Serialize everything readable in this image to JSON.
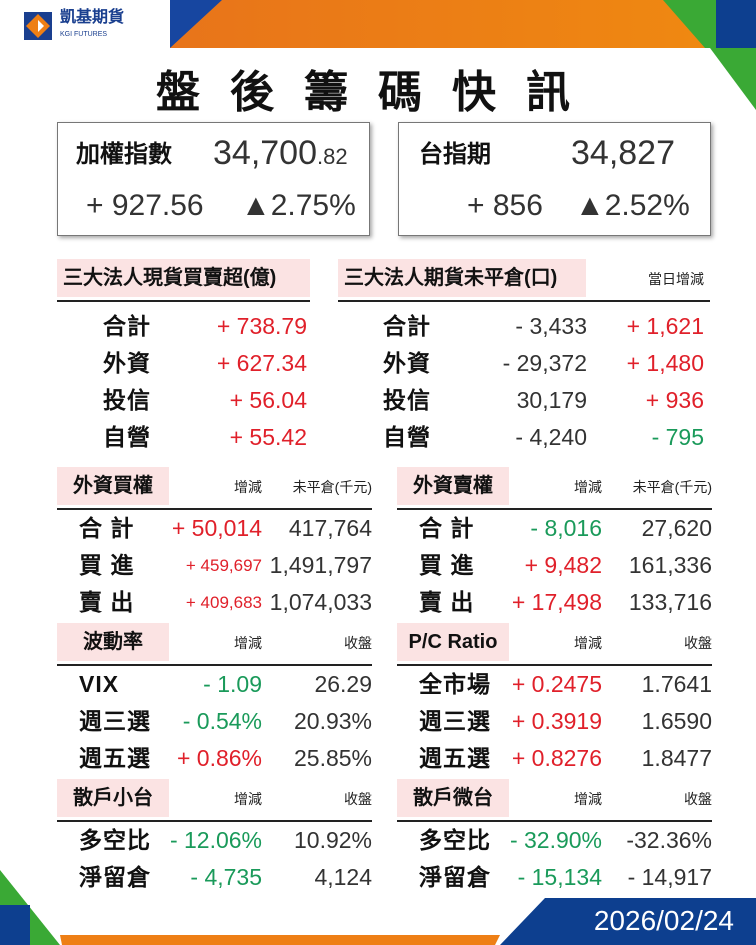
{
  "brand": {
    "name": "凱基期貨",
    "sub": "KGI FUTURES"
  },
  "title": "盤後籌碼快訊",
  "index": {
    "name": "加權指數",
    "price_int": "34,700",
    "price_dec": ".82",
    "change": "+ 927.56",
    "pct": "▲2.75%"
  },
  "futures": {
    "name": "台指期",
    "price": "34,827",
    "change": "+ 856",
    "pct": "▲2.52%"
  },
  "colors": {
    "up": "#e0202a",
    "down": "#1a9a5a",
    "header_bg": "#fbe3e3",
    "orange": "#ee7f15",
    "blue": "#0d3f8f",
    "green": "#3aa935"
  },
  "spot": {
    "header": "三大法人現貨買賣超(億)",
    "rows": [
      {
        "label": "合計",
        "value": "+ 738.79",
        "dir": "up"
      },
      {
        "label": "外資",
        "value": "+ 627.34",
        "dir": "up"
      },
      {
        "label": "投信",
        "value": "+ 56.04",
        "dir": "up"
      },
      {
        "label": "自營",
        "value": "+ 55.42",
        "dir": "up"
      }
    ]
  },
  "oi": {
    "header": "三大法人期貨未平倉(口)",
    "change_header": "當日增減",
    "rows": [
      {
        "label": "合計",
        "value": "- 3,433",
        "change": "+ 1,621",
        "dir": "up"
      },
      {
        "label": "外資",
        "value": "- 29,372",
        "change": "+ 1,480",
        "dir": "up"
      },
      {
        "label": "投信",
        "value": "30,179",
        "change": "+ 936",
        "dir": "up"
      },
      {
        "label": "自營",
        "value": "- 4,240",
        "change": "- 795",
        "dir": "down"
      }
    ]
  },
  "sections": [
    {
      "key": "call",
      "header": "外資買權",
      "h1": "增減",
      "h2": "未平倉(千元)",
      "rows": [
        {
          "label": "合 計",
          "change": "+ 50,014",
          "dir": "up",
          "value": "417,764"
        },
        {
          "label": "買 進",
          "change": "+ 459,697",
          "dir": "up",
          "value": "1,491,797",
          "small": true
        },
        {
          "label": "賣 出",
          "change": "+ 409,683",
          "dir": "up",
          "value": "1,074,033",
          "small": true
        }
      ]
    },
    {
      "key": "put",
      "header": "外資賣權",
      "h1": "增減",
      "h2": "未平倉(千元)",
      "rows": [
        {
          "label": "合 計",
          "change": "- 8,016",
          "dir": "down",
          "value": "27,620"
        },
        {
          "label": "買 進",
          "change": "+ 9,482",
          "dir": "up",
          "value": "161,336"
        },
        {
          "label": "賣 出",
          "change": "+ 17,498",
          "dir": "up",
          "value": "133,716"
        }
      ]
    },
    {
      "key": "vol",
      "header": "波動率",
      "h1": "增減",
      "h2": "收盤",
      "rows": [
        {
          "label": "VIX",
          "change": "- 1.09",
          "dir": "down",
          "value": "26.29"
        },
        {
          "label": "週三選",
          "change": "- 0.54%",
          "dir": "down",
          "value": "20.93%"
        },
        {
          "label": "週五選",
          "change": "+ 0.86%",
          "dir": "up",
          "value": "25.85%"
        }
      ]
    },
    {
      "key": "pc",
      "header": "P/C Ratio",
      "h1": "增減",
      "h2": "收盤",
      "rows": [
        {
          "label": "全市場",
          "change": "+ 0.2475",
          "dir": "up",
          "value": "1.7641"
        },
        {
          "label": "週三選",
          "change": "+ 0.3919",
          "dir": "up",
          "value": "1.6590"
        },
        {
          "label": "週五選",
          "change": "+ 0.8276",
          "dir": "up",
          "value": "1.8477"
        }
      ]
    },
    {
      "key": "retail-mtx",
      "header": "散戶小台",
      "h1": "增減",
      "h2": "收盤",
      "rows": [
        {
          "label": "多空比",
          "change": "- 12.06%",
          "dir": "down",
          "value": "10.92%"
        },
        {
          "label": "淨留倉",
          "change": "- 4,735",
          "dir": "down",
          "value": "4,124"
        }
      ]
    },
    {
      "key": "retail-micro",
      "header": "散戶微台",
      "h1": "增減",
      "h2": "收盤",
      "rows": [
        {
          "label": "多空比",
          "change": "- 32.90%",
          "dir": "down",
          "value": "-32.36%"
        },
        {
          "label": "淨留倉",
          "change": "- 15,134",
          "dir": "down",
          "value": "- 14,917"
        }
      ]
    }
  ],
  "date": "2026/02/24"
}
